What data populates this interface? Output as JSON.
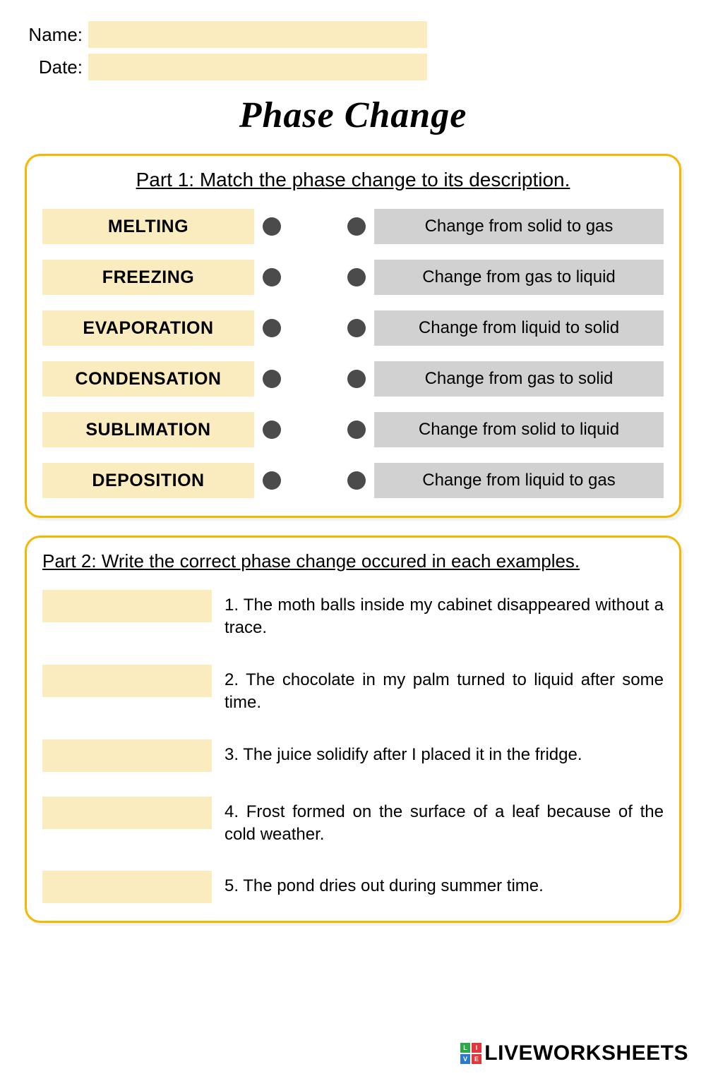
{
  "header": {
    "name_label": "Name:",
    "date_label": "Date:"
  },
  "title": "Phase Change",
  "part1": {
    "heading": "Part 1: Match the phase change to its description.",
    "left_terms": [
      "MELTING",
      "FREEZING",
      "EVAPORATION",
      "CONDENSATION",
      "SUBLIMATION",
      "DEPOSITION"
    ],
    "right_descs": [
      "Change from solid to gas",
      "Change from gas to liquid",
      "Change from liquid to solid",
      "Change from gas to solid",
      "Change from solid to liquid",
      "Change from liquid to gas"
    ]
  },
  "part2": {
    "heading": "Part 2: Write the correct phase change occured in each  examples.",
    "questions": [
      "1. The moth balls inside my cabinet disappeared without a trace.",
      "2. The chocolate in my palm turned to liquid after some time.",
      "3. The juice solidify after I placed it in the fridge.",
      "4. Frost formed on the surface of a leaf because of the cold weather.",
      "5. The pond dries out during summer time."
    ]
  },
  "watermark": "LIVEWORKSHEETS",
  "colors": {
    "highlight": "#fbecc0",
    "border": "#f5b800",
    "grey_box": "#d1d1d1",
    "dot": "#4b4b4b"
  }
}
